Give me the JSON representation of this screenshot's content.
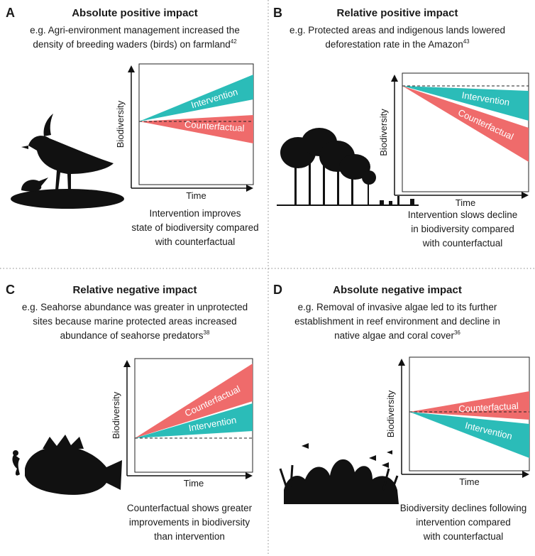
{
  "panels": [
    {
      "letter": "A",
      "title": "Absolute positive impact",
      "example": [
        "e.g. Agri-environment management increased the",
        "density of breeding waders (birds) on farmland"
      ],
      "reference": "42",
      "chart": {
        "y_label": "Biodiversity",
        "x_label": "Time",
        "upper_wedge": "Intervention",
        "lower_wedge": "Counterfactual"
      },
      "caption": [
        "Intervention improves",
        "state of biodiversity compared",
        "with counterfactual"
      ]
    },
    {
      "letter": "B",
      "title": "Relative positive impact",
      "example": [
        "e.g. Protected areas and indigenous lands lowered",
        "deforestation rate in the Amazon"
      ],
      "reference": "43",
      "chart": {
        "y_label": "Biodiversity",
        "x_label": "Time",
        "upper_wedge": "Intervention",
        "lower_wedge": "Counterfactual"
      },
      "caption": [
        "Intervention slows decline",
        "in biodiversity compared",
        "with counterfactual"
      ]
    },
    {
      "letter": "C",
      "title": "Relative negative impact",
      "example": [
        "e.g. Seahorse abundance was greater in unprotected",
        "sites because marine protected areas increased",
        "abundance of seahorse predators"
      ],
      "reference": "38",
      "chart": {
        "y_label": "Biodiversity",
        "x_label": "Time",
        "upper_wedge": "Counterfactual",
        "lower_wedge": "Intervention"
      },
      "caption": [
        "Counterfactual shows greater",
        "improvements in biodiversity",
        "than intervention"
      ]
    },
    {
      "letter": "D",
      "title": "Absolute negative impact",
      "example": [
        "e.g. Removal of invasive algae led to its further",
        "establishment in reef environment and decline in",
        "native algae and coral cover"
      ],
      "reference": "36",
      "chart": {
        "y_label": "Biodiversity",
        "x_label": "Time",
        "upper_wedge": "Counterfactual",
        "lower_wedge": "Intervention"
      },
      "caption": [
        "Biodiversity declines following",
        "intervention compared",
        "with counterfactual"
      ]
    }
  ]
}
